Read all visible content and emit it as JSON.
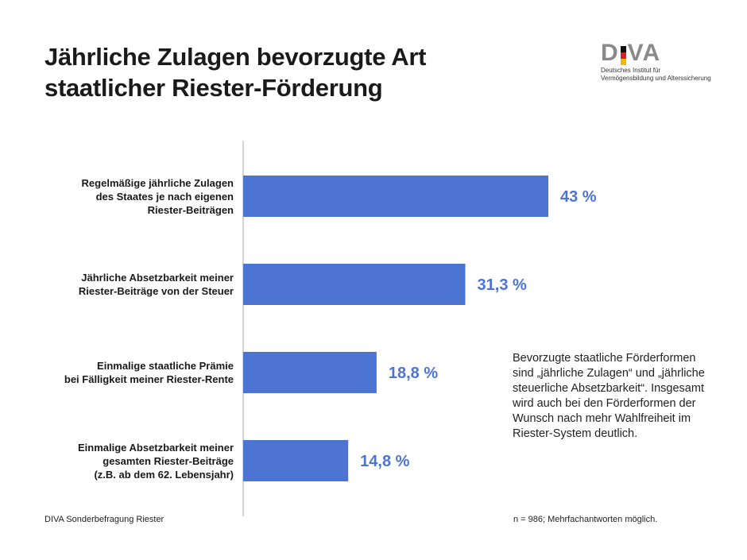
{
  "chart_data": {
    "type": "bar",
    "orientation": "horizontal",
    "title": "Jährliche Zulagen bevorzugte Art staatlicher Riester-Förderung",
    "categories": [
      "Regelmäßige jährliche Zulagen des Staates je nach eigenen Riester-Beiträgen",
      "Jährliche Absetzbarkeit meiner Riester-Beiträge von der Steuer",
      "Einmalige staatliche Prämie bei Fälligkeit meiner Riester-Rente",
      "Einmalige Absetzbarkeit meiner gesamten Riester-Beiträge (z.B. ab dem 62. Lebensjahr)"
    ],
    "category_lines": [
      [
        "Regelmäßige jährliche Zulagen",
        "des Staates je nach eigenen",
        "Riester-Beiträgen"
      ],
      [
        "Jährliche Absetzbarkeit meiner",
        "Riester-Beiträge von der Steuer"
      ],
      [
        "Einmalige staatliche Prämie",
        "bei Fälligkeit meiner Riester-Rente"
      ],
      [
        "Einmalige Absetzbarkeit meiner",
        "gesamten Riester-Beiträge",
        "(z.B. ab dem 62. Lebensjahr)"
      ]
    ],
    "values": [
      43,
      31.3,
      18.8,
      14.8
    ],
    "data_labels": [
      "43 %",
      "31,3 %",
      "18,8 %",
      "14,8 %"
    ],
    "unit": "%",
    "xlim": [
      0,
      70
    ],
    "grid": false,
    "bar_color": "#4d74d2"
  },
  "header": {
    "title_lines": [
      "Jährliche Zulagen bevorzugte Art",
      "staatlicher Riester-Förderung"
    ]
  },
  "logo": {
    "word": "DIVA",
    "subtitle_lines": [
      "Deutsches Institut für",
      "Vermögensbildung und Alterssicherung"
    ]
  },
  "note": "Bevorzugte staatliche Förderformen sind „jährliche Zulagen“ und „jährliche steuerliche Absetzbarkeit“. Insgesamt wird auch bei den Förderformen der Wunsch nach mehr Wahlfreiheit im Riester-System deutlich.",
  "footer": {
    "source": "DIVA Sonderbefragung Riester",
    "sample": "n = 986; Mehrfachantworten möglich."
  }
}
